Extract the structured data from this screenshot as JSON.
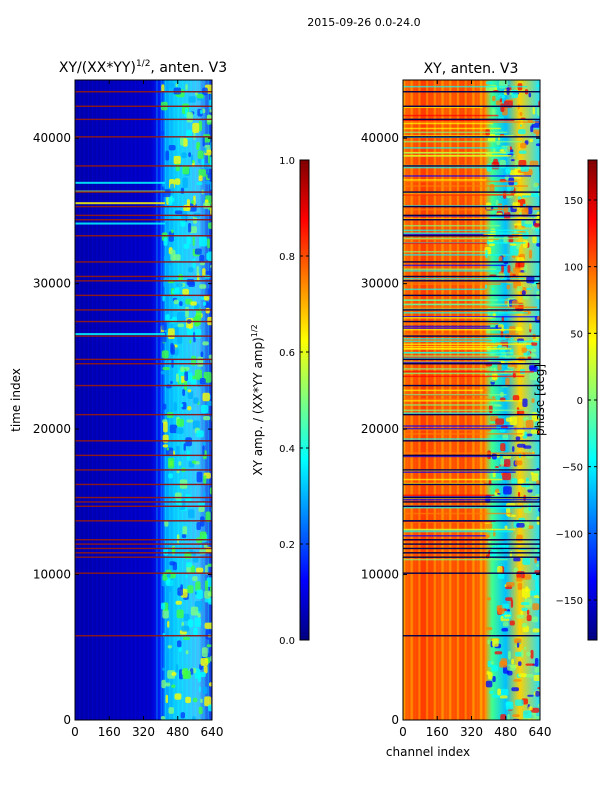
{
  "figure_title": "2015-09-26 0.0-24.0",
  "colors": {
    "jet": [
      "#00007f",
      "#0000ff",
      "#007fff",
      "#00ffff",
      "#7fff7f",
      "#ffff00",
      "#ff7f00",
      "#ff0000",
      "#7f0000"
    ],
    "frame": "#000000",
    "flag_line": "#8b1a1a",
    "dark_line": "#000050"
  },
  "chart_data": [
    {
      "type": "heatmap",
      "title": "XY/(XX*YY)",
      "title_exponent": "1/2",
      "title_suffix": ", anten. V3",
      "xlabel": "",
      "ylabel": "time index",
      "xlim": [
        0,
        640
      ],
      "ylim": [
        0,
        44000
      ],
      "xticks": [
        0,
        160,
        320,
        480,
        640
      ],
      "yticks": [
        0,
        10000,
        20000,
        30000,
        40000
      ],
      "colorbar": {
        "label": "XY amp. / (XX*YY amp)",
        "label_exponent": "1/2",
        "range": [
          0.0,
          1.0
        ],
        "ticks": [
          0.0,
          0.2,
          0.4,
          0.6,
          0.8,
          1.0
        ],
        "tick_labels": [
          "0.0",
          "0.2",
          "0.4",
          "0.6",
          "0.8",
          "1.0"
        ]
      },
      "flagged_rows": [
        5800,
        10100,
        11200,
        11500,
        11800,
        12100,
        12400,
        13700,
        14700,
        15000,
        15300,
        16200,
        17200,
        18200,
        19200,
        21000,
        23000,
        24500,
        24800,
        26400,
        27400,
        28200,
        29200,
        30200,
        30500,
        31500,
        33300,
        34400,
        34700,
        35300,
        36300,
        38100,
        40100,
        41300,
        42200,
        43200
      ]
    },
    {
      "type": "heatmap",
      "title": "XY, anten. V3",
      "xlabel": "channel index",
      "ylabel": "",
      "xlim": [
        0,
        640
      ],
      "ylim": [
        0,
        44000
      ],
      "xticks": [
        0,
        160,
        320,
        480,
        640
      ],
      "yticks": [
        0,
        10000,
        20000,
        30000,
        40000
      ],
      "colorbar": {
        "label": "phase [deg]",
        "range": [
          -180,
          180
        ],
        "ticks": [
          -150,
          -100,
          -50,
          0,
          50,
          100,
          150
        ],
        "tick_labels": [
          "−150",
          "−100",
          "−50",
          "0",
          "50",
          "100",
          "150"
        ]
      },
      "flagged_rows": [
        5800,
        10100,
        11200,
        11500,
        11800,
        12100,
        12400,
        13700,
        14700,
        15000,
        15300,
        16200,
        17200,
        18200,
        19200,
        21000,
        23000,
        24500,
        24800,
        26400,
        27400,
        28200,
        29200,
        30200,
        30500,
        31500,
        33300,
        34400,
        34700,
        35300,
        36300,
        38100,
        40100,
        41300,
        42200,
        43200
      ]
    }
  ]
}
